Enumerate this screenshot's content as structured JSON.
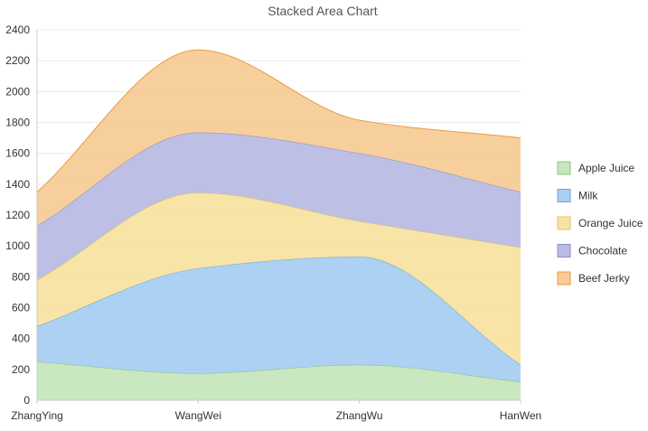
{
  "chart_data": {
    "type": "area",
    "stacked": true,
    "smooth": true,
    "title": "Stacked Area Chart",
    "categories": [
      "ZhangYing",
      "WangWei",
      "ZhangWu",
      "HanWen"
    ],
    "series": [
      {
        "name": "Apple Juice",
        "values": [
          250,
          175,
          230,
          120
        ],
        "color": "#c6e6bd",
        "stroke": "#8cc47e"
      },
      {
        "name": "Milk",
        "values": [
          230,
          680,
          700,
          110
        ],
        "color": "#a9cff2",
        "stroke": "#6fa6d8"
      },
      {
        "name": "Orange Juice",
        "values": [
          300,
          490,
          230,
          760
        ],
        "color": "#f7e3a1",
        "stroke": "#e5c45f"
      },
      {
        "name": "Chocolate",
        "values": [
          350,
          390,
          440,
          360
        ],
        "color": "#b9bde3",
        "stroke": "#8a8fcf"
      },
      {
        "name": "Beef Jerky",
        "values": [
          220,
          535,
          215,
          350
        ],
        "color": "#f7cc98",
        "stroke": "#e99a3e"
      }
    ],
    "ylim": [
      0,
      2400
    ],
    "yticks": [
      0,
      200,
      400,
      600,
      800,
      1000,
      1200,
      1400,
      1600,
      1800,
      2000,
      2200,
      2400
    ],
    "grid": true,
    "legend_position": "right"
  }
}
